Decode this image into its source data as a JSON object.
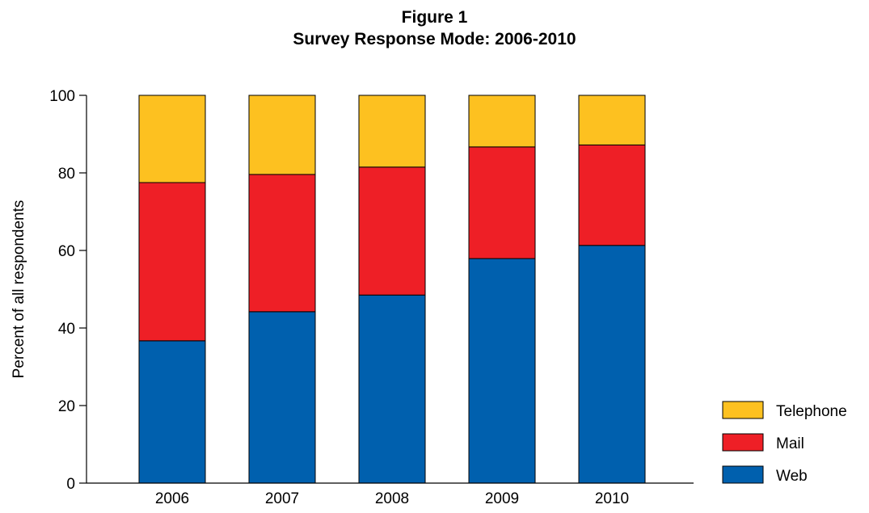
{
  "chart_data": {
    "type": "bar",
    "stacked": true,
    "title": "Figure 1",
    "subtitle": "Survey Response Mode: 2006-2010",
    "xlabel": "",
    "ylabel": "Percent of all respondents",
    "ylim": [
      0,
      100
    ],
    "yticks": [
      "0",
      "20",
      "40",
      "60",
      "80",
      "100"
    ],
    "grid": false,
    "legend_position": "bottom-right",
    "categories": [
      "2006",
      "2007",
      "2008",
      "2009",
      "2010"
    ],
    "series": [
      {
        "name": "Web",
        "color": "#0060ae",
        "values": [
          36.7,
          44.2,
          48.5,
          57.9,
          61.3
        ]
      },
      {
        "name": "Mail",
        "color": "#ee1f26",
        "values": [
          40.8,
          35.4,
          33.0,
          28.8,
          25.9
        ]
      },
      {
        "name": "Telephone",
        "color": "#fdc120",
        "values": [
          22.5,
          20.4,
          18.5,
          13.3,
          12.8
        ]
      }
    ],
    "legend_order": [
      "Telephone",
      "Mail",
      "Web"
    ]
  }
}
